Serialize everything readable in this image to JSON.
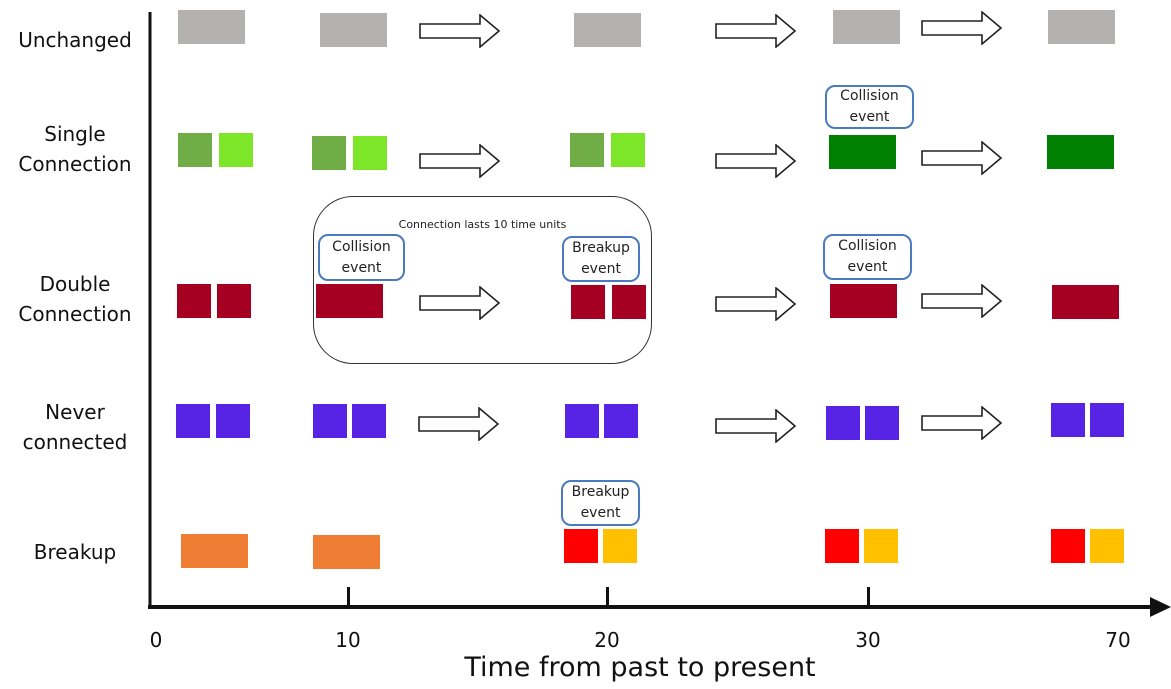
{
  "rows": [
    {
      "label": "Unchanged"
    },
    {
      "label": "Single\nConnection"
    },
    {
      "label": "Double\nConnection"
    },
    {
      "label": "Never\nconnected"
    },
    {
      "label": "Breakup"
    }
  ],
  "callouts": {
    "collision": "Collision\nevent",
    "breakup": "Breakup\nevent"
  },
  "group_note": "Connection lasts 10 time units",
  "axis": {
    "title": "Time from past to present",
    "ticks": [
      "0",
      "10",
      "20",
      "30",
      "70"
    ]
  },
  "colors": {
    "gray": "#b4b1b1",
    "green_dark": "#70ad47",
    "green_light": "#7ee628",
    "green_merged": "#008000",
    "red_dark": "#a50021",
    "blue": "#5724e6",
    "orange": "#ef7d34",
    "red": "#ff0000",
    "yellow": "#ffc000"
  }
}
